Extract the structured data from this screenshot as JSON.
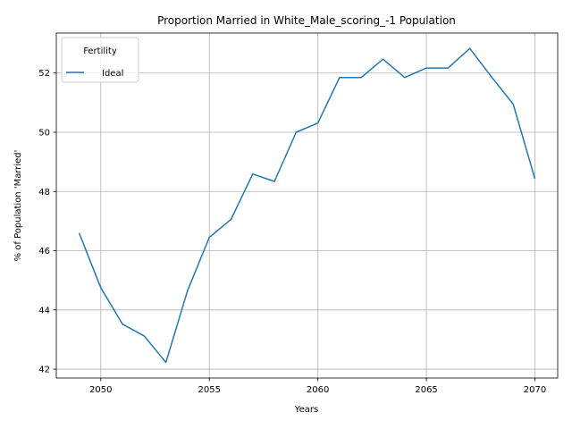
{
  "chart_data": {
    "type": "line",
    "title": "Proportion Married in White_Male_scoring_-1 Population",
    "xlabel": "Years",
    "ylabel": "% of Population 'Married'",
    "xlim": [
      2047.95,
      2071.05
    ],
    "ylim": [
      41.7,
      53.35
    ],
    "xticks": [
      2050,
      2055,
      2060,
      2065,
      2070
    ],
    "yticks": [
      42,
      44,
      46,
      48,
      50,
      52
    ],
    "grid": true,
    "legend": {
      "title": "Fertility",
      "placement": "upper-left"
    },
    "series": [
      {
        "name": "Ideal",
        "color": "#1f77b4",
        "x": [
          2049,
          2050,
          2051,
          2052,
          2053,
          2054,
          2055,
          2056,
          2057,
          2058,
          2059,
          2060,
          2061,
          2062,
          2063,
          2064,
          2065,
          2066,
          2067,
          2068,
          2069,
          2070
        ],
        "y": [
          46.6,
          44.75,
          43.52,
          43.12,
          42.23,
          44.66,
          46.45,
          47.06,
          48.59,
          48.34,
          50.0,
          50.31,
          51.85,
          51.85,
          52.47,
          51.85,
          52.17,
          52.17,
          52.83,
          51.87,
          50.95,
          48.43
        ]
      }
    ]
  }
}
